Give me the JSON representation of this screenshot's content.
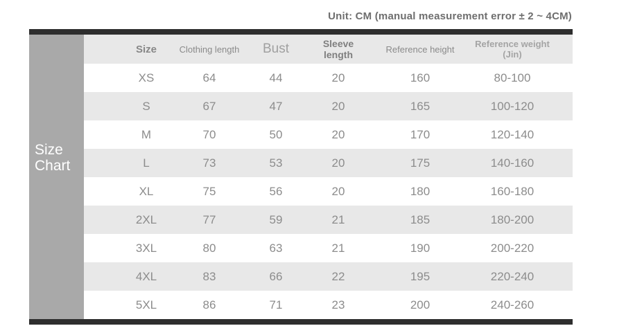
{
  "page": {
    "unit_note": "Unit: CM (manual measurement error ± 2 ~ 4CM)"
  },
  "sidebar": {
    "line1": "Size",
    "line2": "Chart"
  },
  "header": {
    "ref_weight_line1": "Reference weight",
    "ref_weight_line2": "(Jin)"
  },
  "chart_data": {
    "type": "table",
    "title": "Size Chart",
    "unit_note": "Unit: CM (manual measurement error ± 2 ~ 4CM)",
    "columns": [
      "Size",
      "Clothing length",
      "Bust",
      "Sleeve length",
      "Reference height",
      "Reference weight (Jin)"
    ],
    "rows": [
      [
        "XS",
        "64",
        "44",
        "20",
        "160",
        "80-100"
      ],
      [
        "S",
        "67",
        "47",
        "20",
        "165",
        "100-120"
      ],
      [
        "M",
        "70",
        "50",
        "20",
        "170",
        "120-140"
      ],
      [
        "L",
        "73",
        "53",
        "20",
        "175",
        "140-160"
      ],
      [
        "XL",
        "75",
        "56",
        "20",
        "180",
        "160-180"
      ],
      [
        "2XL",
        "77",
        "59",
        "21",
        "185",
        "180-200"
      ],
      [
        "3XL",
        "80",
        "63",
        "21",
        "190",
        "200-220"
      ],
      [
        "4XL",
        "83",
        "66",
        "22",
        "195",
        "220-240"
      ],
      [
        "5XL",
        "86",
        "71",
        "23",
        "200",
        "240-260"
      ]
    ]
  },
  "colors": {
    "bar": "#2e2e2e",
    "sidebar_bg": "#a9a9a9",
    "stripe_bg": "#e8e8e8",
    "cell_text": "#8c8c8c",
    "note_text": "#6e6e6e",
    "sidebar_text": "#ffffff"
  }
}
